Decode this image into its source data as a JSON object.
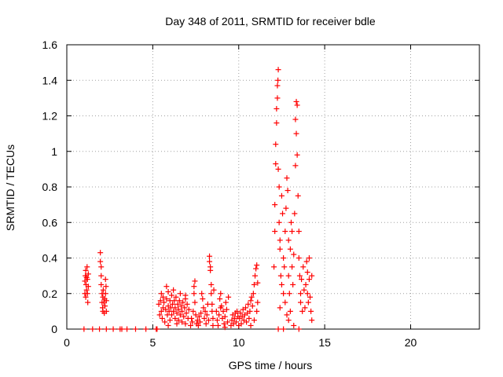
{
  "chart_data": {
    "type": "scatter",
    "title": "Day 348 of 2011, SRMTID for receiver bdle",
    "xlabel": "GPS time / hours",
    "ylabel": "SRMTID / TECUs",
    "xlim": [
      0,
      24
    ],
    "ylim": [
      0,
      1.6
    ],
    "xticks": [
      0,
      5,
      10,
      15,
      20
    ],
    "yticks": [
      0,
      0.2,
      0.4,
      0.6,
      0.8,
      1,
      1.2,
      1.4,
      1.6
    ],
    "ytick_labels": [
      "0",
      "0.2",
      "0.4",
      "0.6",
      "0.8",
      "1",
      "1.2",
      "1.4",
      "1.6"
    ],
    "grid": true,
    "marker": "plus",
    "series": [
      {
        "name": "",
        "color": "#ff0000",
        "points": [
          [
            1.0,
            0.0
          ],
          [
            1.05,
            0.2
          ],
          [
            1.05,
            0.27
          ],
          [
            1.08,
            0.3
          ],
          [
            1.1,
            0.33
          ],
          [
            1.12,
            0.25
          ],
          [
            1.15,
            0.29
          ],
          [
            1.15,
            0.22
          ],
          [
            1.18,
            0.35
          ],
          [
            1.2,
            0.28
          ],
          [
            1.22,
            0.15
          ],
          [
            1.25,
            0.31
          ],
          [
            1.25,
            0.24
          ],
          [
            1.1,
            0.18
          ],
          [
            1.2,
            0.2
          ],
          [
            1.5,
            0.0
          ],
          [
            1.9,
            0.0
          ],
          [
            2.3,
            0.0
          ],
          [
            2.7,
            0.0
          ],
          [
            3.1,
            0.0
          ],
          [
            3.2,
            0.0
          ],
          [
            3.5,
            0.0
          ],
          [
            4.0,
            0.0
          ],
          [
            4.6,
            0.0
          ],
          [
            5.2,
            0.0
          ],
          [
            5.25,
            0.0
          ],
          [
            1.95,
            0.43
          ],
          [
            1.95,
            0.38
          ],
          [
            2.0,
            0.3
          ],
          [
            2.0,
            0.25
          ],
          [
            2.05,
            0.2
          ],
          [
            2.05,
            0.15
          ],
          [
            2.08,
            0.12
          ],
          [
            2.1,
            0.18
          ],
          [
            2.1,
            0.1
          ],
          [
            2.12,
            0.22
          ],
          [
            2.15,
            0.15
          ],
          [
            2.18,
            0.09
          ],
          [
            2.2,
            0.17
          ],
          [
            2.22,
            0.13
          ],
          [
            2.25,
            0.2
          ],
          [
            2.25,
            0.28
          ],
          [
            2.28,
            0.24
          ],
          [
            2.3,
            0.1
          ],
          [
            2.3,
            0.16
          ],
          [
            2.0,
            0.35
          ],
          [
            5.35,
            0.14
          ],
          [
            5.4,
            0.08
          ],
          [
            5.45,
            0.16
          ],
          [
            5.5,
            0.1
          ],
          [
            5.55,
            0.06
          ],
          [
            5.6,
            0.12
          ],
          [
            5.6,
            0.18
          ],
          [
            5.65,
            0.15
          ],
          [
            5.7,
            0.04
          ],
          [
            5.75,
            0.11
          ],
          [
            5.8,
            0.17
          ],
          [
            5.85,
            0.08
          ],
          [
            5.9,
            0.13
          ],
          [
            5.9,
            0.21
          ],
          [
            5.95,
            0.1
          ],
          [
            6.0,
            0.16
          ],
          [
            6.0,
            0.05
          ],
          [
            6.05,
            0.12
          ],
          [
            6.1,
            0.19
          ],
          [
            6.1,
            0.08
          ],
          [
            6.15,
            0.14
          ],
          [
            6.2,
            0.1
          ],
          [
            6.25,
            0.16
          ],
          [
            6.3,
            0.06
          ],
          [
            6.3,
            0.12
          ],
          [
            6.35,
            0.18
          ],
          [
            6.4,
            0.09
          ],
          [
            6.45,
            0.14
          ],
          [
            6.5,
            0.05
          ],
          [
            6.5,
            0.11
          ],
          [
            6.55,
            0.16
          ],
          [
            6.6,
            0.08
          ],
          [
            6.65,
            0.13
          ],
          [
            6.7,
            0.04
          ],
          [
            6.7,
            0.1
          ],
          [
            6.75,
            0.15
          ],
          [
            6.8,
            0.07
          ],
          [
            6.85,
            0.12
          ],
          [
            6.9,
            0.17
          ],
          [
            6.9,
            0.03
          ],
          [
            6.95,
            0.09
          ],
          [
            7.0,
            0.14
          ],
          [
            7.05,
            0.06
          ],
          [
            7.1,
            0.11
          ],
          [
            5.5,
            0.2
          ],
          [
            5.8,
            0.24
          ],
          [
            6.2,
            0.22
          ],
          [
            6.6,
            0.2
          ],
          [
            6.9,
            0.19
          ],
          [
            5.9,
            0.02
          ],
          [
            6.4,
            0.03
          ],
          [
            7.2,
            0.02
          ],
          [
            7.25,
            0.06
          ],
          [
            7.3,
            0.04
          ],
          [
            7.35,
            0.1
          ],
          [
            7.4,
            0.2
          ],
          [
            7.4,
            0.24
          ],
          [
            7.45,
            0.27
          ],
          [
            7.45,
            0.15
          ],
          [
            7.5,
            0.08
          ],
          [
            7.55,
            0.03
          ],
          [
            7.6,
            0.05
          ],
          [
            7.65,
            0.02
          ],
          [
            7.7,
            0.07
          ],
          [
            7.75,
            0.04
          ],
          [
            7.8,
            0.09
          ],
          [
            7.85,
            0.2
          ],
          [
            7.9,
            0.17
          ],
          [
            7.95,
            0.12
          ],
          [
            8.0,
            0.06
          ],
          [
            8.05,
            0.1
          ],
          [
            8.1,
            0.03
          ],
          [
            8.15,
            0.08
          ],
          [
            8.2,
            0.14
          ],
          [
            8.25,
            0.05
          ],
          [
            8.3,
            0.38
          ],
          [
            8.3,
            0.41
          ],
          [
            8.35,
            0.33
          ],
          [
            8.35,
            0.35
          ],
          [
            8.4,
            0.25
          ],
          [
            8.4,
            0.2
          ],
          [
            8.45,
            0.14
          ],
          [
            8.45,
            0.1
          ],
          [
            8.5,
            0.06
          ],
          [
            8.5,
            0.02
          ],
          [
            8.55,
            0.22
          ],
          [
            8.7,
            0.1
          ],
          [
            8.75,
            0.05
          ],
          [
            8.8,
            0.02
          ],
          [
            8.85,
            0.08
          ],
          [
            8.9,
            0.17
          ],
          [
            8.95,
            0.2
          ],
          [
            9.0,
            0.13
          ],
          [
            9.05,
            0.06
          ],
          [
            9.1,
            0.1
          ],
          [
            9.15,
            0.03
          ],
          [
            9.2,
            0.07
          ],
          [
            9.25,
            0.15
          ],
          [
            9.3,
            0.11
          ],
          [
            9.35,
            0.04
          ],
          [
            9.4,
            0.18
          ],
          [
            8.95,
            0.12
          ],
          [
            9.2,
            0.01
          ],
          [
            9.55,
            0.02
          ],
          [
            9.6,
            0.05
          ],
          [
            9.65,
            0.08
          ],
          [
            9.7,
            0.03
          ],
          [
            9.75,
            0.06
          ],
          [
            9.8,
            0.09
          ],
          [
            9.85,
            0.04
          ],
          [
            9.9,
            0.1
          ],
          [
            9.95,
            0.07
          ],
          [
            10.0,
            0.02
          ],
          [
            10.05,
            0.06
          ],
          [
            10.1,
            0.09
          ],
          [
            10.15,
            0.03
          ],
          [
            10.2,
            0.07
          ],
          [
            10.25,
            0.11
          ],
          [
            10.3,
            0.05
          ],
          [
            10.35,
            0.08
          ],
          [
            10.4,
            0.12
          ],
          [
            10.45,
            0.04
          ],
          [
            10.5,
            0.09
          ],
          [
            10.55,
            0.14
          ],
          [
            10.6,
            0.06
          ],
          [
            10.65,
            0.1
          ],
          [
            10.7,
            0.16
          ],
          [
            10.75,
            0.18
          ],
          [
            10.8,
            0.13
          ],
          [
            10.85,
            0.2
          ],
          [
            10.9,
            0.25
          ],
          [
            10.95,
            0.3
          ],
          [
            11.0,
            0.34
          ],
          [
            11.05,
            0.36
          ],
          [
            11.1,
            0.26
          ],
          [
            11.1,
            0.15
          ],
          [
            10.7,
            0.02
          ],
          [
            10.9,
            0.05
          ],
          [
            11.05,
            0.1
          ],
          [
            12.05,
            0.35
          ],
          [
            12.1,
            0.55
          ],
          [
            12.1,
            0.7
          ],
          [
            12.15,
            0.93
          ],
          [
            12.15,
            1.04
          ],
          [
            12.2,
            1.16
          ],
          [
            12.2,
            1.24
          ],
          [
            12.25,
            1.3
          ],
          [
            12.25,
            1.37
          ],
          [
            12.28,
            1.4
          ],
          [
            12.3,
            1.46
          ],
          [
            12.3,
            0.9
          ],
          [
            12.35,
            0.8
          ],
          [
            12.35,
            0.6
          ],
          [
            12.4,
            0.5
          ],
          [
            12.4,
            0.45
          ],
          [
            12.45,
            0.3
          ],
          [
            12.5,
            0.25
          ],
          [
            12.5,
            0.75
          ],
          [
            12.55,
            0.65
          ],
          [
            12.6,
            0.4
          ],
          [
            12.6,
            0.2
          ],
          [
            12.65,
            0.35
          ],
          [
            12.7,
            0.55
          ],
          [
            12.7,
            0.15
          ],
          [
            12.75,
            0.68
          ],
          [
            12.8,
            0.85
          ],
          [
            12.85,
            0.78
          ],
          [
            12.9,
            0.5
          ],
          [
            12.9,
            0.3
          ],
          [
            12.95,
            0.2
          ],
          [
            13.0,
            0.45
          ],
          [
            13.0,
            0.1
          ],
          [
            13.05,
            0.6
          ],
          [
            13.1,
            0.35
          ],
          [
            13.1,
            0.55
          ],
          [
            13.15,
            0.25
          ],
          [
            13.2,
            0.42
          ],
          [
            13.25,
            0.65
          ],
          [
            13.3,
            0.92
          ],
          [
            13.3,
            1.18
          ],
          [
            13.35,
            1.1
          ],
          [
            13.35,
            1.28
          ],
          [
            13.4,
            1.26
          ],
          [
            13.4,
            0.98
          ],
          [
            13.45,
            0.75
          ],
          [
            13.5,
            0.55
          ],
          [
            13.5,
            0.4
          ],
          [
            13.55,
            0.3
          ],
          [
            13.6,
            0.2
          ],
          [
            13.6,
            0.15
          ],
          [
            13.65,
            0.28
          ],
          [
            13.7,
            0.1
          ],
          [
            13.75,
            0.35
          ],
          [
            13.8,
            0.22
          ],
          [
            13.85,
            0.12
          ],
          [
            13.9,
            0.25
          ],
          [
            13.95,
            0.38
          ],
          [
            14.0,
            0.32
          ],
          [
            14.0,
            0.2
          ],
          [
            14.05,
            0.15
          ],
          [
            14.1,
            0.4
          ],
          [
            14.1,
            0.28
          ],
          [
            14.15,
            0.18
          ],
          [
            14.2,
            0.1
          ],
          [
            14.25,
            0.05
          ],
          [
            14.25,
            0.3
          ],
          [
            12.3,
            0.0
          ],
          [
            12.6,
            0.0
          ],
          [
            12.9,
            0.05
          ],
          [
            13.2,
            0.02
          ],
          [
            13.5,
            0.0
          ],
          [
            12.4,
            0.12
          ],
          [
            12.8,
            0.08
          ]
        ]
      }
    ]
  }
}
